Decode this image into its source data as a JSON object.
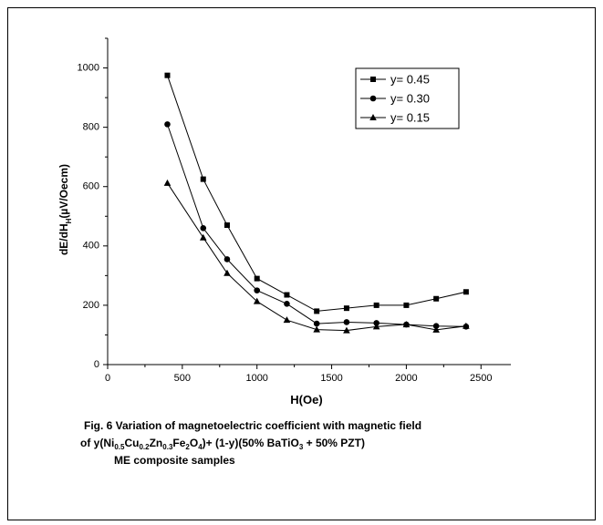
{
  "chart_data": {
    "type": "line",
    "x_label": "H(Oe)",
    "y_label": [
      "dE/dH",
      "H",
      "(µV/Oecm)"
    ],
    "caption": [
      [
        "Fig. 6 Variation of magnetoelectric coefficient with magnetic field"
      ],
      [
        "of y(Ni",
        "0.5",
        "Cu",
        "0.2",
        "Zn",
        "0.3",
        "Fe",
        "2",
        "O",
        "4",
        ")+ (1-y)(50% BaTiO",
        "3",
        " + 50% PZT)"
      ],
      [
        "ME composite samples"
      ]
    ],
    "x": [
      400,
      640,
      800,
      1000,
      1200,
      1400,
      1600,
      1800,
      2000,
      2200,
      2400
    ],
    "series": [
      {
        "name": "y= 0.45",
        "color": "#000000",
        "marker": "square",
        "values": [
          975,
          625,
          470,
          290,
          235,
          180,
          190,
          200,
          200,
          222,
          245
        ]
      },
      {
        "name": "y= 0.30",
        "color": "#000000",
        "marker": "circle",
        "values": [
          810,
          460,
          355,
          250,
          205,
          138,
          143,
          140,
          135,
          130,
          128
        ]
      },
      {
        "name": "y= 0.15",
        "color": "#000000",
        "marker": "triangle",
        "values": [
          612,
          428,
          308,
          213,
          150,
          118,
          115,
          128,
          135,
          117,
          130
        ]
      }
    ],
    "xlim": [
      0,
      2700
    ],
    "xticks": [
      0,
      500,
      1000,
      1500,
      2000,
      2500
    ],
    "xminor": [
      250,
      750,
      1250,
      1750,
      2250
    ],
    "ylim": [
      0,
      1100
    ],
    "yticks": [
      0,
      200,
      400,
      600,
      800,
      1000
    ],
    "yminor": [
      100,
      300,
      500,
      700,
      900,
      1100
    ],
    "legend": "upper-right"
  }
}
